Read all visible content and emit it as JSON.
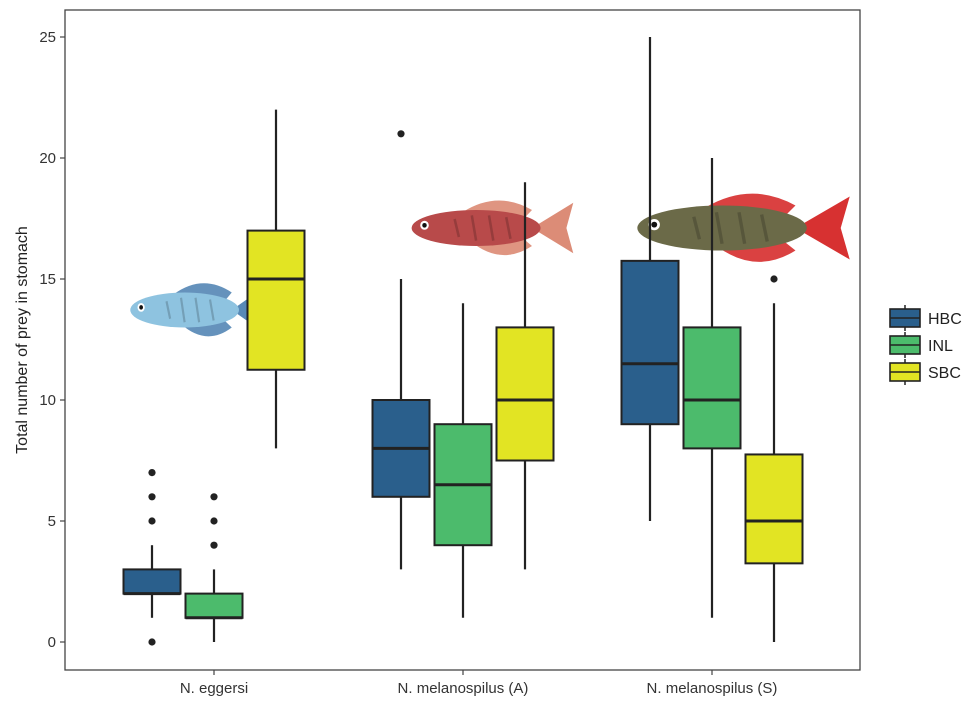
{
  "chart_data": {
    "type": "boxplot",
    "title": "",
    "xlabel": "",
    "ylabel": "Total number of prey in stomach",
    "ylim": [
      -1.2,
      26.3
    ],
    "yticks": [
      0,
      5,
      10,
      15,
      20,
      25
    ],
    "grid": false,
    "legend_position": "right",
    "categories": [
      "N. eggersi",
      "N. melanospilus (A)",
      "N. melanospilus (S)"
    ],
    "series": [
      {
        "name": "HBC",
        "color": "#2a5f8c",
        "boxes": [
          {
            "whisker_low": 1,
            "q1": 2,
            "median": 2,
            "q3": 3,
            "whisker_high": 4,
            "outliers": [
              0,
              5,
              6,
              7
            ]
          },
          {
            "whisker_low": 3,
            "q1": 6,
            "median": 8,
            "q3": 10,
            "whisker_high": 15,
            "outliers": [
              21
            ]
          },
          {
            "whisker_low": 5,
            "q1": 9,
            "median": 11.5,
            "q3": 15.75,
            "whisker_high": 25,
            "outliers": []
          }
        ]
      },
      {
        "name": "INL",
        "color": "#4cbb6c",
        "boxes": [
          {
            "whisker_low": 0,
            "q1": 1,
            "median": 1,
            "q3": 2,
            "whisker_high": 3,
            "outliers": [
              4,
              5,
              6
            ]
          },
          {
            "whisker_low": 1,
            "q1": 4,
            "median": 6.5,
            "q3": 9,
            "whisker_high": 14,
            "outliers": []
          },
          {
            "whisker_low": 1,
            "q1": 8,
            "median": 10,
            "q3": 13,
            "whisker_high": 20,
            "outliers": []
          }
        ]
      },
      {
        "name": "SBC",
        "color": "#e2e423",
        "boxes": [
          {
            "whisker_low": 8,
            "q1": 11.25,
            "median": 15,
            "q3": 17,
            "whisker_high": 22,
            "outliers": []
          },
          {
            "whisker_low": 3,
            "q1": 7.5,
            "median": 10,
            "q3": 13,
            "whisker_high": 19,
            "outliers": []
          },
          {
            "whisker_low": 0,
            "q1": 3.25,
            "median": 5,
            "q3": 7.75,
            "whisker_high": 14,
            "outliers": [
              15
            ]
          }
        ]
      }
    ],
    "fish_illustrations": [
      {
        "category": "N. eggersi",
        "icon": "blue-killifish-icon",
        "body_color": "#8ec3e0",
        "fin_color": "#4a7fb0"
      },
      {
        "category": "N. melanospilus (A)",
        "icon": "red-killifish-icon",
        "body_color": "#b84a4a",
        "fin_color": "#d9826b"
      },
      {
        "category": "N. melanospilus (S)",
        "icon": "red-tail-killifish-icon",
        "body_color": "#6b6a48",
        "fin_color": "#d42020"
      }
    ]
  }
}
